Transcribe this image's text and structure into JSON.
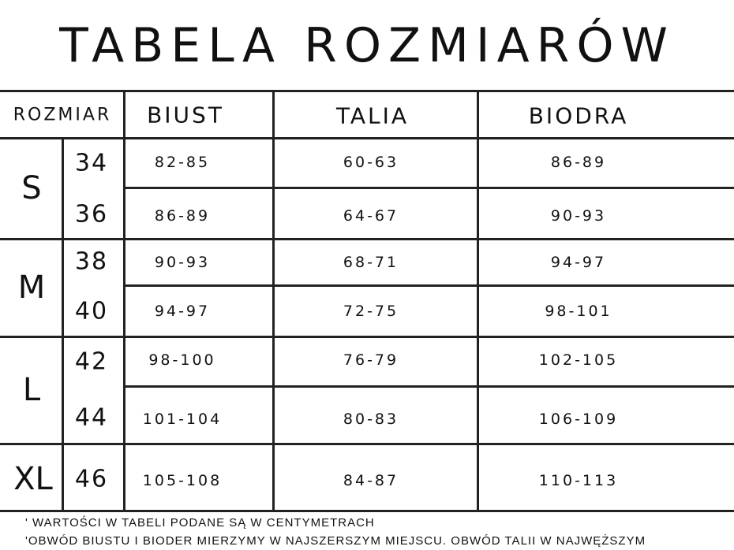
{
  "title": "TABELA ROZMIARÓW",
  "headers": {
    "size": "ROZMIAR",
    "bust": "BIUST",
    "waist": "TALIA",
    "hips": "BIODRA"
  },
  "groups": [
    {
      "label": "S",
      "rows": [
        {
          "size": "34",
          "bust": "82-85",
          "waist": "60-63",
          "hips": "86-89"
        },
        {
          "size": "36",
          "bust": "86-89",
          "waist": "64-67",
          "hips": "90-93"
        }
      ]
    },
    {
      "label": "M",
      "rows": [
        {
          "size": "38",
          "bust": "90-93",
          "waist": "68-71",
          "hips": "94-97"
        },
        {
          "size": "40",
          "bust": "94-97",
          "waist": "72-75",
          "hips": "98-101"
        }
      ]
    },
    {
      "label": "L",
      "rows": [
        {
          "size": "42",
          "bust": "98-100",
          "waist": "76-79",
          "hips": "102-105"
        },
        {
          "size": "44",
          "bust": "101-104",
          "waist": "80-83",
          "hips": "106-109"
        }
      ]
    },
    {
      "label": "XL",
      "rows": [
        {
          "size": "46",
          "bust": "105-108",
          "waist": "84-87",
          "hips": "110-113"
        }
      ]
    }
  ],
  "notes": [
    "' WARTOŚCI W TABELI PODANE SĄ W CENTYMETRACH",
    "'OBWÓD BIUSTU I BIODER MIERZYMY W NAJSZERSZYM MIEJSCU. OBWÓD TALII W NAJWĘŻSZYM"
  ]
}
